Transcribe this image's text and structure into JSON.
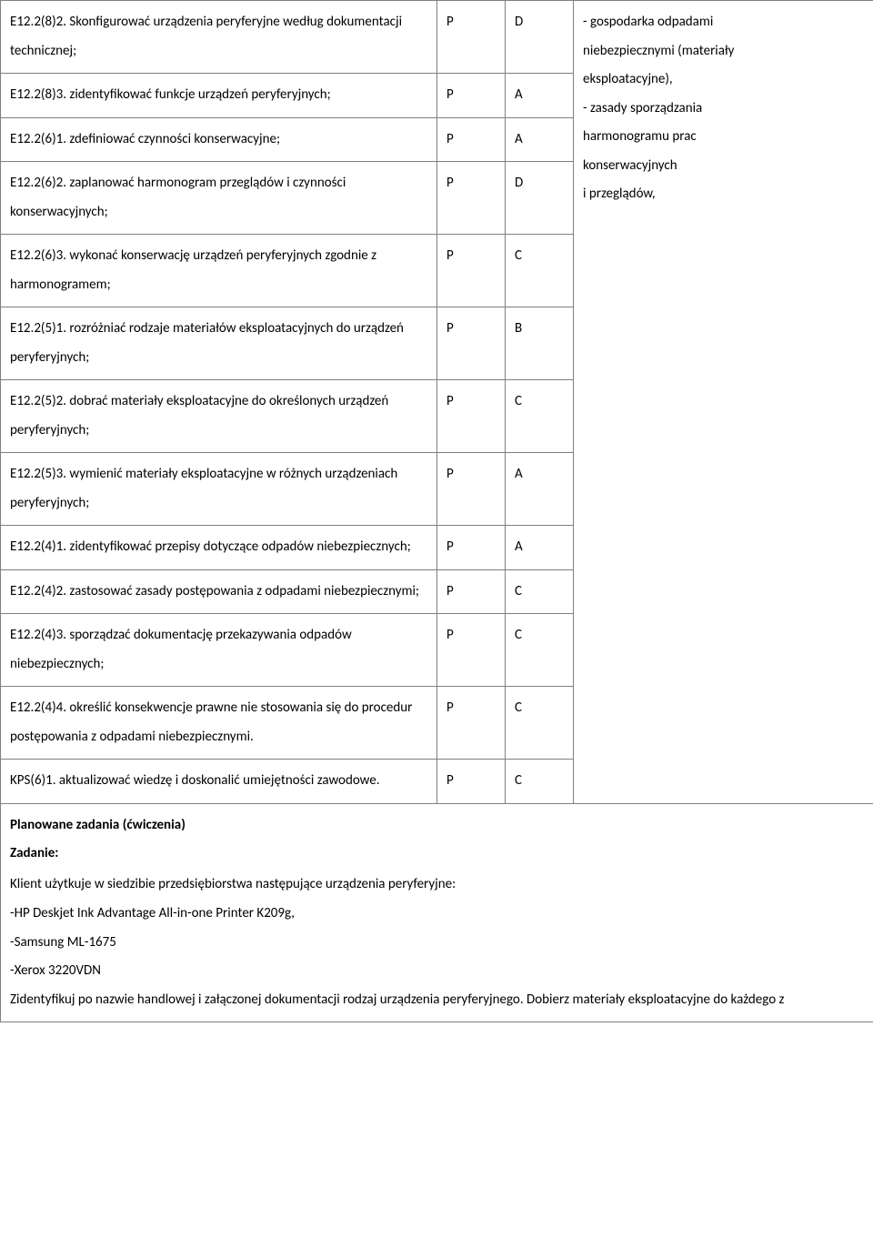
{
  "rows": [
    {
      "desc": "E12.2(8)2. Skonfigurować urządzenia peryferyjne według dokumentacji technicznej;",
      "p": "P",
      "code": "D"
    },
    {
      "desc": "E12.2(8)3. zidentyfikować funkcje urządzeń peryferyjnych;",
      "p": "P",
      "code": "A"
    },
    {
      "desc": "E12.2(6)1. zdefiniować czynności konserwacyjne;",
      "p": "P",
      "code": "A"
    },
    {
      "desc": "E12.2(6)2. zaplanować harmonogram przeglądów i czynności konserwacyjnych;",
      "p": "P",
      "code": "D"
    },
    {
      "desc": "E12.2(6)3. wykonać konserwację urządzeń peryferyjnych zgodnie z harmonogramem;",
      "p": "P",
      "code": "C"
    },
    {
      "desc": "E12.2(5)1. rozróżniać rodzaje materiałów eksploatacyjnych do urządzeń peryferyjnych;",
      "p": "P",
      "code": "B"
    },
    {
      "desc": "E12.2(5)2. dobrać materiały eksploatacyjne do określonych urządzeń peryferyjnych;",
      "p": "P",
      "code": "C"
    },
    {
      "desc": "E12.2(5)3. wymienić materiały eksploatacyjne w różnych urządzeniach peryferyjnych;",
      "p": "P",
      "code": "A"
    },
    {
      "desc": "E12.2(4)1. zidentyfikować przepisy dotyczące odpadów niebezpiecznych;",
      "p": "P",
      "code": "A"
    },
    {
      "desc": "E12.2(4)2. zastosować zasady postępowania z odpadami niebezpiecznymi;",
      "p": "P",
      "code": "C"
    },
    {
      "desc": "E12.2(4)3. sporządzać dokumentację przekazywania odpadów niebezpiecznych;",
      "p": "P",
      "code": "C"
    },
    {
      "desc": "E12.2(4)4. określić konsekwencje prawne nie stosowania się do procedur postępowania z odpadami niebezpiecznymi.",
      "p": "P",
      "code": "C"
    },
    {
      "desc": "KPS(6)1. aktualizować wiedzę i doskonalić umiejętności zawodowe.",
      "p": "P",
      "code": "C"
    }
  ],
  "note_lines": [
    "- gospodarka odpadami",
    "niebezpiecznymi (materiały",
    "eksploatacyjne),",
    "- zasady sporządzania",
    "harmonogramu prac",
    "konserwacyjnych",
    "i przeglądów,"
  ],
  "bottom": {
    "heading1": "Planowane zadania (ćwiczenia)",
    "heading2": "Zadanie:",
    "intro": "Klient użytkuje w siedzibie przedsiębiorstwa następujące urządzenia peryferyjne:",
    "items": [
      "-HP Deskjet Ink Advantage All-in-one Printer K209g,",
      "-Samsung ML-1675",
      "-Xerox 3220VDN"
    ],
    "closing": "Zidentyfikuj po nazwie handlowej i załączonej dokumentacji rodzaj urządzenia peryferyjnego.   Dobierz materiały eksploatacyjne do każdego z"
  }
}
